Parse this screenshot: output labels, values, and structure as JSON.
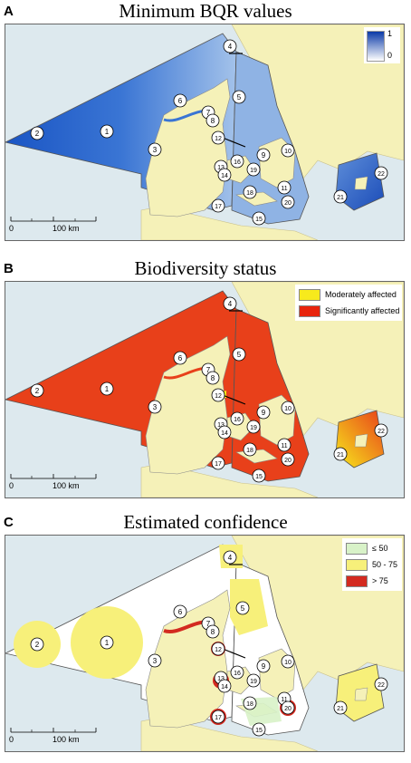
{
  "panels": [
    {
      "letter": "A",
      "title": "Minimum BQR values",
      "legend": {
        "type": "gradient",
        "max_label": "1",
        "min_label": "0",
        "colors": [
          "#0b3aa8",
          "#ffffff"
        ]
      },
      "scalebar": {
        "start": "0",
        "end": "100 km"
      },
      "palette": {
        "sea_main": "#2d66cc",
        "sea_inner": "#5d8fd8",
        "sea_light": "#a9c5ea"
      }
    },
    {
      "letter": "B",
      "title": "Biodiversity status",
      "legend": {
        "type": "categories",
        "items": [
          {
            "label": "Moderately affected",
            "color": "#f7ea1c"
          },
          {
            "label": "Significantly affected",
            "color": "#e8240c"
          }
        ]
      },
      "scalebar": {
        "start": "0",
        "end": "100 km"
      },
      "palette": {
        "sea_main": "#e8401a",
        "sea_inner": "#e8401a",
        "sea_light": "#f09030"
      }
    },
    {
      "letter": "C",
      "title": "Estimated confidence",
      "legend": {
        "type": "categories",
        "items": [
          {
            "label": "≤ 50",
            "color": "#d8f2c8"
          },
          {
            "label": "50 - 75",
            "color": "#f7f07a"
          },
          {
            "label": "> 75",
            "color": "#d32a20"
          }
        ]
      },
      "scalebar": {
        "start": "0",
        "end": "100 km"
      },
      "palette": {
        "sea_main": "#ffffff",
        "sea_inner": "#ffffff",
        "sea_light": "#f7f07a"
      }
    }
  ],
  "area_labels": [
    "1",
    "2",
    "3",
    "4",
    "5",
    "6",
    "7",
    "8",
    "9",
    "10",
    "11",
    "12",
    "13",
    "14",
    "15",
    "16",
    "17",
    "18",
    "19",
    "20",
    "21",
    "22"
  ],
  "colors": {
    "land": "#f5f1b8",
    "outer_sea": "#dde9ee",
    "border": "#555555"
  }
}
